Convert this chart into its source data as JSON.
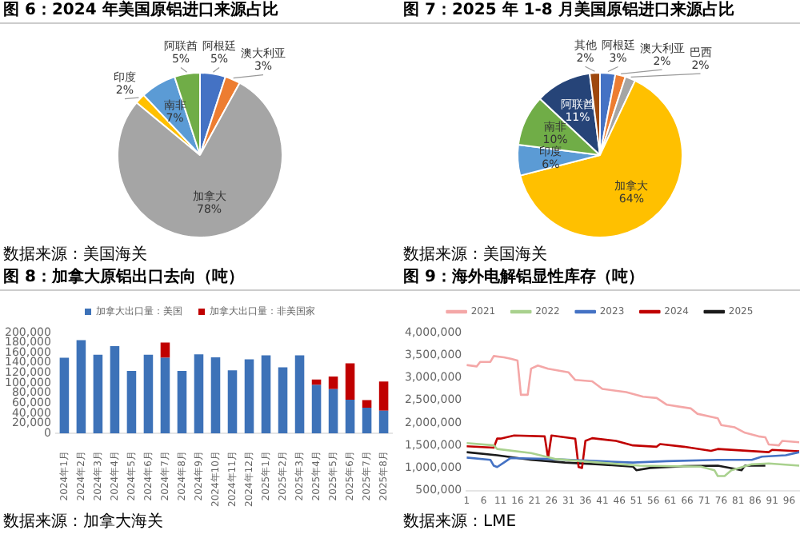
{
  "chart_data": [
    {
      "type": "pie",
      "title": "图 6：2024 年美国原铝进口来源占比",
      "categories": [
        "阿根廷",
        "澳大利亚",
        "加拿大",
        "印度",
        "南非",
        "阿联酋"
      ],
      "values": [
        5,
        3,
        78,
        2,
        7,
        5
      ],
      "value_labels": [
        "5%",
        "3%",
        "78%",
        "2%",
        "7%",
        "5%"
      ],
      "colors": [
        "#4472c4",
        "#ed7d31",
        "#a5a5a5",
        "#ffc000",
        "#5b9bd5",
        "#70ad47"
      ],
      "legend": false,
      "annotations": [
        "数据来源：美国海关"
      ]
    },
    {
      "type": "pie",
      "title": "图 7：2025 年 1-8 月美国原铝进口来源占比",
      "categories": [
        "阿根廷",
        "澳大利亚",
        "巴西",
        "加拿大",
        "印度",
        "南非",
        "阿联酋",
        "其他"
      ],
      "values": [
        3,
        2,
        2,
        64,
        6,
        10,
        11,
        2
      ],
      "value_labels": [
        "3%",
        "2%",
        "2%",
        "64%",
        "6%",
        "10%",
        "11%",
        "2%"
      ],
      "colors": [
        "#4472c4",
        "#ed7d31",
        "#a5a5a5",
        "#ffc000",
        "#5b9bd5",
        "#70ad47",
        "#264478",
        "#9e480e"
      ],
      "legend": false,
      "annotations": [
        "数据来源：美国海关"
      ]
    },
    {
      "type": "bar",
      "stacked": true,
      "title": "图 8：加拿大原铝出口去向（吨）",
      "categories": [
        "2024年1月",
        "2024年2月",
        "2024年3月",
        "2024年4月",
        "2024年5月",
        "2024年6月",
        "2024年7月",
        "2024年8月",
        "2024年9月",
        "2024年10月",
        "2024年11月",
        "2024年12月",
        "2025年1月",
        "2025年2月",
        "2025年3月",
        "2025年4月",
        "2025年5月",
        "2025年6月",
        "2025年7月",
        "2025年8月"
      ],
      "series": [
        {
          "name": "加拿大出口量：美国",
          "color": "#3d72b8",
          "values": [
            150000,
            185000,
            156000,
            173000,
            124000,
            156000,
            150000,
            124000,
            157000,
            151000,
            125000,
            147000,
            155000,
            131000,
            155000,
            96000,
            88000,
            67000,
            51000,
            45000
          ]
        },
        {
          "name": "加拿大出口量：非美国家",
          "color": "#c00000",
          "values": [
            null,
            null,
            null,
            null,
            null,
            null,
            30000,
            null,
            null,
            null,
            null,
            null,
            null,
            null,
            null,
            11000,
            25000,
            72000,
            15000,
            58000
          ]
        }
      ],
      "ylim": [
        0,
        200000
      ],
      "yticks": [
        0,
        {
          "value": 20000,
          "label": "20,000"
        },
        {
          "value": 40000,
          "label": "40,000"
        },
        {
          "value": 60000,
          "label": "60,000"
        },
        {
          "value": 80000,
          "label": "80,000"
        },
        {
          "value": 100000,
          "label": "100,000"
        },
        {
          "value": 120000,
          "label": "120,000"
        },
        {
          "value": 140000,
          "label": "140,000"
        },
        {
          "value": 160000,
          "label": "160,000"
        },
        {
          "value": 180000,
          "label": "180,000"
        },
        {
          "value": 200000,
          "label": "200,000"
        }
      ],
      "grid": false,
      "legend": "top",
      "annotations": [
        "数据来源：加拿大海关"
      ]
    },
    {
      "type": "line",
      "title": "图 9：海外电解铝显性库存（吨）",
      "xlim": [
        1,
        99
      ],
      "xticks": [
        1,
        6,
        11,
        16,
        21,
        26,
        31,
        36,
        41,
        46,
        51,
        56,
        61,
        66,
        71,
        76,
        81,
        86,
        91,
        96
      ],
      "ylim": [
        500000,
        4000000
      ],
      "yticks": [
        {
          "value": 500000,
          "label": "500,000"
        },
        {
          "value": 1000000,
          "label": "1,000,000"
        },
        {
          "value": 1500000,
          "label": "1,500,000"
        },
        {
          "value": 2000000,
          "label": "2,000,000"
        },
        {
          "value": 2500000,
          "label": "2,500,000"
        },
        {
          "value": 3000000,
          "label": "3,000,000"
        },
        {
          "value": 3500000,
          "label": "3,500,000"
        },
        {
          "value": 4000000,
          "label": "4,000,000"
        }
      ],
      "series": [
        {
          "name": "2021",
          "color": "#f4a7a7",
          "x": [
            1,
            4,
            5,
            8,
            9,
            12,
            14,
            16,
            17,
            19,
            20,
            22,
            25,
            31,
            33,
            38,
            41,
            48,
            53,
            57,
            60,
            67,
            69,
            75,
            76,
            80,
            83,
            87,
            89,
            90,
            93,
            94,
            99
          ],
          "values": [
            3280000,
            3250000,
            3350000,
            3350000,
            3480000,
            3450000,
            3420000,
            3380000,
            2620000,
            2620000,
            3200000,
            3270000,
            3200000,
            3120000,
            2950000,
            2920000,
            2750000,
            2680000,
            2580000,
            2550000,
            2400000,
            2320000,
            2200000,
            2100000,
            1950000,
            1900000,
            1780000,
            1700000,
            1680000,
            1520000,
            1500000,
            1600000,
            1570000
          ]
        },
        {
          "name": "2022",
          "color": "#a9d18e",
          "x": [
            1,
            9,
            10,
            20,
            27,
            40,
            52,
            70,
            74,
            75,
            77,
            79,
            85,
            90,
            99
          ],
          "values": [
            1550000,
            1500000,
            1420000,
            1330000,
            1200000,
            1120000,
            1050000,
            1030000,
            950000,
            820000,
            820000,
            950000,
            1080000,
            1100000,
            1050000
          ]
        },
        {
          "name": "2023",
          "color": "#4472c4",
          "x": [
            1,
            8,
            9,
            10,
            12,
            14,
            25,
            40,
            50,
            60,
            75,
            85,
            88,
            95,
            99
          ],
          "values": [
            1230000,
            1180000,
            1050000,
            1020000,
            1120000,
            1220000,
            1200000,
            1150000,
            1120000,
            1150000,
            1180000,
            1180000,
            1250000,
            1280000,
            1350000
          ]
        },
        {
          "name": "2024",
          "color": "#c00000",
          "x": [
            1,
            9,
            10,
            11,
            15,
            24,
            25,
            26,
            33,
            34,
            35,
            36,
            38,
            45,
            50,
            57,
            58,
            65,
            73,
            75,
            90,
            91,
            99
          ],
          "values": [
            1480000,
            1450000,
            1650000,
            1650000,
            1720000,
            1700000,
            1220000,
            1720000,
            1650000,
            1020000,
            1000000,
            1600000,
            1660000,
            1600000,
            1500000,
            1470000,
            1530000,
            1470000,
            1380000,
            1420000,
            1350000,
            1400000,
            1370000
          ]
        },
        {
          "name": "2025",
          "color": "#1a1a1a",
          "x": [
            1,
            10,
            20,
            30,
            40,
            50,
            51,
            55,
            65,
            75,
            80,
            82,
            83,
            89
          ],
          "values": [
            1350000,
            1280000,
            1180000,
            1120000,
            1080000,
            1030000,
            950000,
            1000000,
            1040000,
            1050000,
            980000,
            950000,
            1050000,
            1050000
          ]
        }
      ],
      "grid": false,
      "legend": "top",
      "marker": "none",
      "line_style": "solid",
      "annotations": [
        "数据来源：LME"
      ]
    }
  ]
}
